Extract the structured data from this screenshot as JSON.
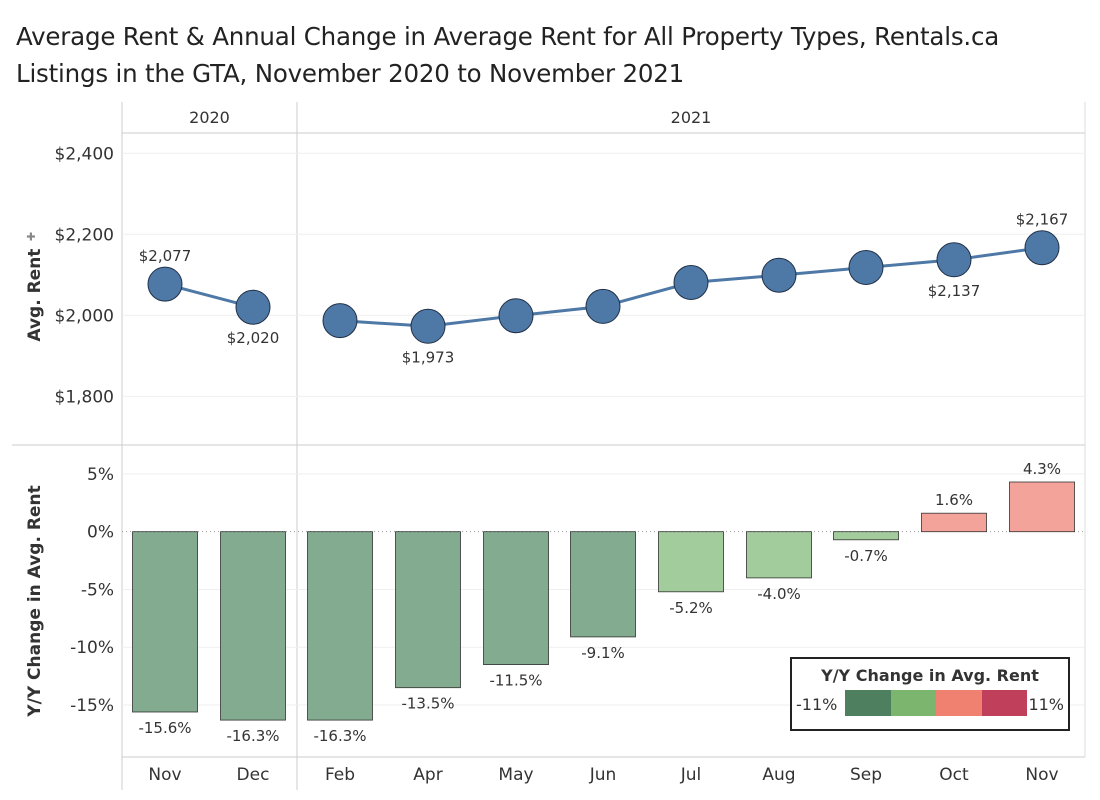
{
  "title": "Average Rent & Annual Change in Average Rent for All Property Types, Rentals.ca Listings in the GTA, November 2020 to November 2021",
  "chart_data": [
    {
      "type": "line",
      "ylabel": "Avg. Rent",
      "ylim": [
        1680,
        2450
      ],
      "yticks": [
        1800,
        2000,
        2200,
        2400
      ],
      "ytick_labels": [
        "$1,800",
        "$2,000",
        "$2,200",
        "$2,400"
      ],
      "groups": [
        {
          "label": "2020",
          "categories": [
            "Nov",
            "Dec"
          ]
        },
        {
          "label": "2021",
          "categories": [
            "Feb",
            "Apr",
            "May",
            "Jun",
            "Jul",
            "Aug",
            "Sep",
            "Oct",
            "Nov"
          ]
        }
      ],
      "categories": [
        "Nov",
        "Dec",
        "Feb",
        "Apr",
        "May",
        "Jun",
        "Jul",
        "Aug",
        "Sep",
        "Oct",
        "Nov"
      ],
      "values": [
        2077,
        2020,
        1987,
        1973,
        1999,
        2022,
        2081,
        2099,
        2118,
        2137,
        2167
      ],
      "data_labels": [
        "$2,077",
        "$2,020",
        "",
        "$1,973",
        "",
        "",
        "",
        "",
        "",
        "$2,137",
        "$2,167"
      ],
      "label_pos": [
        "above",
        "below",
        "",
        "below",
        "",
        "",
        "",
        "",
        "",
        "below",
        "above"
      ],
      "color": "#4e79a7"
    },
    {
      "type": "bar",
      "ylabel": "Y/Y Change in Avg. Rent",
      "ylim": [
        -19.5,
        7.5
      ],
      "yticks": [
        5,
        0,
        -5,
        -10,
        -15
      ],
      "ytick_labels": [
        "5%",
        "0%",
        "-5%",
        "-10%",
        "-15%"
      ],
      "categories": [
        "Nov",
        "Dec",
        "Feb",
        "Apr",
        "May",
        "Jun",
        "Jul",
        "Aug",
        "Sep",
        "Oct",
        "Nov"
      ],
      "values": [
        -15.6,
        -16.3,
        -16.3,
        -13.5,
        -11.5,
        -9.1,
        -5.2,
        -4.0,
        -0.7,
        1.6,
        4.3
      ],
      "data_labels": [
        "-15.6%",
        "-16.3%",
        "-16.3%",
        "-13.5%",
        "-11.5%",
        "-9.1%",
        "-5.2%",
        "-4.0%",
        "-0.7%",
        "1.6%",
        "4.3%"
      ],
      "colors": [
        "#82ab8f",
        "#82ab8f",
        "#82ab8f",
        "#82ab8f",
        "#82ab8f",
        "#82ab8f",
        "#a3cc9c",
        "#a3cc9c",
        "#a3cc9c",
        "#f4a39a",
        "#f4a39a"
      ],
      "legend": {
        "title": "Y/Y Change in Avg. Rent",
        "min_label": "-11%",
        "max_label": "11%",
        "colors": [
          "#4e8060",
          "#7cb56e",
          "#f08070",
          "#c0405c"
        ]
      }
    }
  ]
}
